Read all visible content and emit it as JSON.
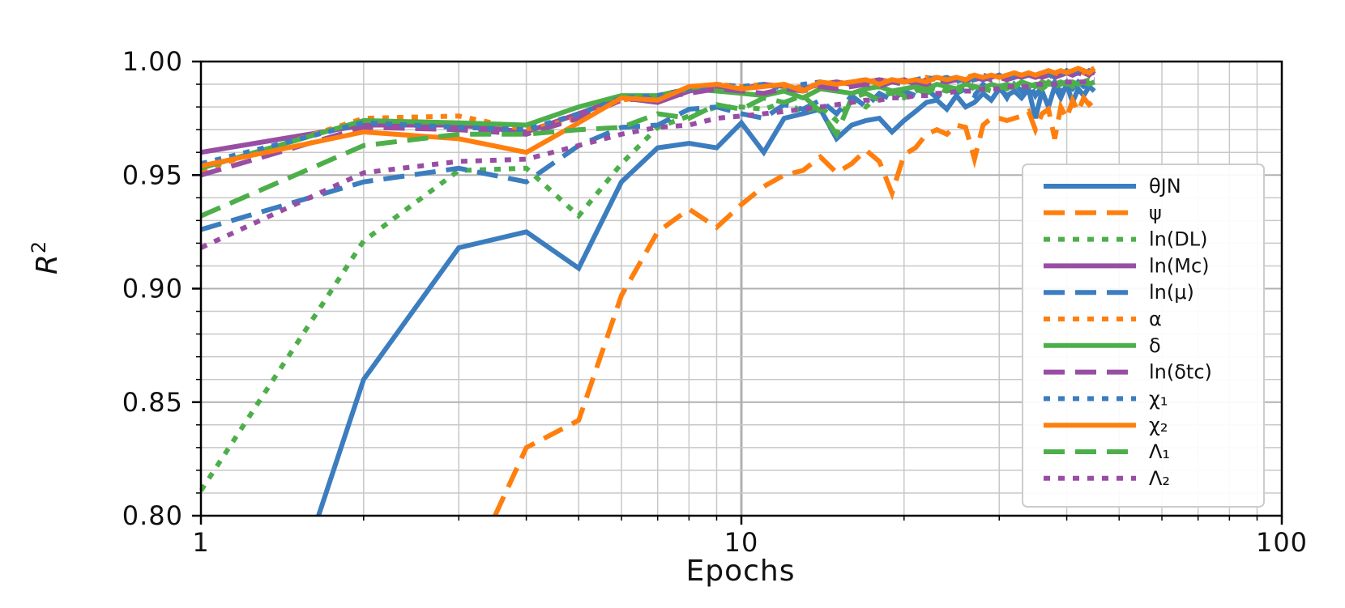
{
  "chart_data": {
    "type": "line",
    "xlabel": "Epochs",
    "ylabel": "R²",
    "xscale": "log",
    "xlim": [
      1,
      100
    ],
    "ylim": [
      0.8,
      1.0
    ],
    "grid": true,
    "legend_position": "center-right",
    "x_tick_labels": [
      "1",
      "10",
      "100"
    ],
    "y_tick_labels": [
      "0.80",
      "0.85",
      "0.90",
      "0.95",
      "1.00"
    ],
    "series": [
      {
        "name": "θ_JN",
        "legend_label": "θJN",
        "color": "#3b7dbf",
        "style": "solid",
        "x": [
          1.65,
          2,
          3,
          4,
          5,
          6,
          7,
          8,
          9,
          10,
          11,
          12,
          13,
          14,
          15,
          16,
          17,
          18,
          19,
          20,
          21,
          22,
          23,
          24,
          25,
          26,
          27,
          28,
          29,
          30,
          31,
          32,
          33,
          34,
          35,
          36,
          37,
          38,
          39,
          40,
          41,
          42,
          43,
          44,
          45
        ],
        "y": [
          0.8,
          0.86,
          0.918,
          0.925,
          0.909,
          0.947,
          0.962,
          0.964,
          0.962,
          0.973,
          0.96,
          0.975,
          0.977,
          0.979,
          0.966,
          0.972,
          0.974,
          0.975,
          0.969,
          0.974,
          0.978,
          0.982,
          0.983,
          0.979,
          0.985,
          0.98,
          0.982,
          0.986,
          0.983,
          0.988,
          0.985,
          0.987,
          0.984,
          0.988,
          0.975,
          0.987,
          0.98,
          0.989,
          0.984,
          0.99,
          0.982,
          0.988,
          0.985,
          0.989,
          0.987
        ]
      },
      {
        "name": "ψ",
        "legend_label": "ψ",
        "color": "#ff7f0e",
        "style": "dashed",
        "x": [
          3.5,
          4,
          5,
          6,
          7,
          8,
          9,
          10,
          11,
          12,
          13,
          14,
          15,
          16,
          17,
          18,
          19,
          20,
          21,
          22,
          23,
          24,
          25,
          26,
          27,
          28,
          29,
          30,
          31,
          32,
          33,
          34,
          35,
          36,
          37,
          38,
          39,
          40,
          41,
          42,
          43,
          44,
          45
        ],
        "y": [
          0.8,
          0.83,
          0.842,
          0.897,
          0.925,
          0.935,
          0.927,
          0.937,
          0.945,
          0.95,
          0.952,
          0.958,
          0.951,
          0.955,
          0.961,
          0.956,
          0.942,
          0.959,
          0.962,
          0.968,
          0.97,
          0.968,
          0.972,
          0.971,
          0.957,
          0.972,
          0.975,
          0.975,
          0.974,
          0.975,
          0.976,
          0.978,
          0.97,
          0.977,
          0.979,
          0.966,
          0.98,
          0.975,
          0.983,
          0.978,
          0.984,
          0.981,
          0.983
        ]
      },
      {
        "name": "ln(D_L)",
        "legend_label": "ln(DL)",
        "color": "#4daf4a",
        "style": "dotted",
        "x": [
          1,
          2,
          3,
          4,
          5,
          6,
          7,
          8,
          9,
          10,
          11,
          12,
          13,
          14,
          15,
          16,
          17,
          18,
          19,
          20,
          21,
          22,
          23,
          24,
          25,
          26,
          27,
          28,
          29,
          30,
          31,
          32,
          33,
          34,
          35,
          36,
          37,
          38,
          39,
          40,
          41,
          42,
          43,
          44,
          45
        ],
        "y": [
          0.811,
          0.921,
          0.952,
          0.953,
          0.932,
          0.955,
          0.971,
          0.976,
          0.98,
          0.98,
          0.979,
          0.982,
          0.978,
          0.98,
          0.974,
          0.983,
          0.98,
          0.985,
          0.986,
          0.984,
          0.987,
          0.989,
          0.988,
          0.987,
          0.989,
          0.987,
          0.99,
          0.988,
          0.987,
          0.989,
          0.99,
          0.988,
          0.989,
          0.991,
          0.99,
          0.988,
          0.991,
          0.989,
          0.99,
          0.991,
          0.99,
          0.989,
          0.991,
          0.992,
          0.991
        ]
      },
      {
        "name": "ln(M_c)",
        "legend_label": "ln(Mc)",
        "color": "#984ea3",
        "style": "solid",
        "x": [
          1,
          2,
          3,
          4,
          5,
          6,
          7,
          8,
          9,
          10,
          11,
          12,
          13,
          14,
          15,
          16,
          17,
          18,
          19,
          20,
          21,
          22,
          23,
          24,
          25,
          26,
          27,
          28,
          29,
          30,
          31,
          32,
          33,
          34,
          35,
          36,
          37,
          38,
          39,
          40,
          41,
          42,
          43,
          44,
          45
        ],
        "y": [
          0.96,
          0.972,
          0.972,
          0.969,
          0.977,
          0.984,
          0.982,
          0.987,
          0.989,
          0.988,
          0.99,
          0.989,
          0.988,
          0.99,
          0.991,
          0.99,
          0.991,
          0.992,
          0.991,
          0.992,
          0.99,
          0.992,
          0.993,
          0.992,
          0.993,
          0.991,
          0.993,
          0.992,
          0.993,
          0.994,
          0.992,
          0.994,
          0.993,
          0.994,
          0.993,
          0.994,
          0.995,
          0.993,
          0.994,
          0.995,
          0.994,
          0.996,
          0.995,
          0.994,
          0.996
        ]
      },
      {
        "name": "ln(μ)",
        "legend_label": "ln(μ)",
        "color": "#3b7dbf",
        "style": "dashed",
        "x": [
          1,
          2,
          3,
          4,
          5,
          6,
          7,
          8,
          9,
          10,
          11,
          12,
          13,
          14,
          15,
          16,
          17,
          18,
          19,
          20,
          21,
          22,
          23,
          24,
          25,
          26,
          27,
          28,
          29,
          30,
          31,
          32,
          33,
          34,
          35,
          36,
          37,
          38,
          39,
          40,
          41,
          42,
          43,
          44,
          45
        ],
        "y": [
          0.926,
          0.947,
          0.953,
          0.947,
          0.963,
          0.971,
          0.972,
          0.979,
          0.98,
          0.977,
          0.975,
          0.981,
          0.979,
          0.983,
          0.977,
          0.985,
          0.98,
          0.986,
          0.983,
          0.987,
          0.985,
          0.988,
          0.984,
          0.989,
          0.986,
          0.988,
          0.985,
          0.99,
          0.987,
          0.989,
          0.984,
          0.99,
          0.987,
          0.991,
          0.985,
          0.989,
          0.988,
          0.991,
          0.986,
          0.99,
          0.988,
          0.991,
          0.989,
          0.99,
          0.992
        ]
      },
      {
        "name": "α",
        "legend_label": "α",
        "color": "#ff7f0e",
        "style": "dotted",
        "x": [
          1,
          2,
          3,
          4,
          5,
          6,
          7,
          8,
          9,
          10,
          11,
          12,
          13,
          14,
          15,
          16,
          17,
          18,
          19,
          20,
          21,
          22,
          23,
          24,
          25,
          26,
          27,
          28,
          29,
          30,
          31,
          32,
          33,
          34,
          35,
          36,
          37,
          38,
          39,
          40,
          41,
          42,
          43,
          44,
          45
        ],
        "y": [
          0.952,
          0.975,
          0.976,
          0.97,
          0.975,
          0.983,
          0.985,
          0.988,
          0.99,
          0.989,
          0.99,
          0.988,
          0.989,
          0.99,
          0.991,
          0.99,
          0.991,
          0.992,
          0.991,
          0.992,
          0.991,
          0.993,
          0.992,
          0.993,
          0.992,
          0.993,
          0.994,
          0.993,
          0.994,
          0.993,
          0.994,
          0.995,
          0.994,
          0.995,
          0.994,
          0.995,
          0.996,
          0.995,
          0.994,
          0.996,
          0.995,
          0.996,
          0.995,
          0.996,
          0.997
        ]
      },
      {
        "name": "δ",
        "legend_label": "δ",
        "color": "#4daf4a",
        "style": "solid",
        "x": [
          1,
          2,
          3,
          4,
          5,
          6,
          7,
          8,
          9,
          10,
          11,
          12,
          13,
          14,
          15,
          16,
          17,
          18,
          19,
          20,
          21,
          22,
          23,
          24,
          25,
          26,
          27,
          28,
          29,
          30,
          31,
          32,
          33,
          34,
          35,
          36,
          37,
          38,
          39,
          40,
          41,
          42,
          43,
          44,
          45
        ],
        "y": [
          0.953,
          0.974,
          0.973,
          0.972,
          0.98,
          0.985,
          0.985,
          0.988,
          0.987,
          0.986,
          0.985,
          0.987,
          0.984,
          0.988,
          0.987,
          0.986,
          0.988,
          0.989,
          0.987,
          0.988,
          0.989,
          0.988,
          0.99,
          0.989,
          0.988,
          0.99,
          0.989,
          0.988,
          0.99,
          0.989,
          0.99,
          0.989,
          0.991,
          0.99,
          0.989,
          0.991,
          0.99,
          0.99,
          0.991,
          0.99,
          0.991,
          0.99,
          0.991,
          0.99,
          0.991
        ]
      },
      {
        "name": "ln(δt_c)",
        "legend_label": "ln(δtc)",
        "color": "#984ea3",
        "style": "dashed",
        "x": [
          1,
          2,
          3,
          4,
          5,
          6,
          7,
          8,
          9,
          10,
          11,
          12,
          13,
          14,
          15,
          16,
          17,
          18,
          19,
          20,
          21,
          22,
          23,
          24,
          25,
          26,
          27,
          28,
          29,
          30,
          31,
          32,
          33,
          34,
          35,
          36,
          37,
          38,
          39,
          40,
          41,
          42,
          43,
          44,
          45
        ],
        "y": [
          0.95,
          0.971,
          0.97,
          0.968,
          0.975,
          0.983,
          0.984,
          0.986,
          0.988,
          0.987,
          0.986,
          0.988,
          0.987,
          0.989,
          0.988,
          0.989,
          0.99,
          0.989,
          0.991,
          0.99,
          0.991,
          0.99,
          0.992,
          0.991,
          0.992,
          0.991,
          0.992,
          0.993,
          0.992,
          0.993,
          0.992,
          0.993,
          0.994,
          0.993,
          0.994,
          0.993,
          0.994,
          0.995,
          0.994,
          0.995,
          0.994,
          0.995,
          0.994,
          0.995,
          0.995
        ]
      },
      {
        "name": "χ₁",
        "legend_label": "χ₁",
        "color": "#3b7dbf",
        "style": "dotted",
        "x": [
          1,
          2,
          3,
          4,
          5,
          6,
          7,
          8,
          9,
          10,
          11,
          12,
          13,
          14,
          15,
          16,
          17,
          18,
          19,
          20,
          21,
          22,
          23,
          24,
          25,
          26,
          27,
          28,
          29,
          30,
          31,
          32,
          33,
          34,
          35,
          36,
          37,
          38,
          39,
          40,
          41,
          42,
          43,
          44,
          45
        ],
        "y": [
          0.955,
          0.973,
          0.971,
          0.97,
          0.977,
          0.984,
          0.985,
          0.988,
          0.99,
          0.989,
          0.99,
          0.988,
          0.99,
          0.991,
          0.99,
          0.991,
          0.992,
          0.99,
          0.992,
          0.991,
          0.992,
          0.993,
          0.992,
          0.993,
          0.991,
          0.993,
          0.992,
          0.994,
          0.993,
          0.994,
          0.992,
          0.994,
          0.993,
          0.995,
          0.994,
          0.995,
          0.993,
          0.995,
          0.994,
          0.996,
          0.995,
          0.996,
          0.994,
          0.996,
          0.995
        ]
      },
      {
        "name": "χ₂",
        "legend_label": "χ₂",
        "color": "#ff7f0e",
        "style": "solid",
        "x": [
          1,
          2,
          3,
          4,
          5,
          6,
          7,
          8,
          9,
          10,
          11,
          12,
          13,
          14,
          15,
          16,
          17,
          18,
          19,
          20,
          21,
          22,
          23,
          24,
          25,
          26,
          27,
          28,
          29,
          30,
          31,
          32,
          33,
          34,
          35,
          36,
          37,
          38,
          39,
          40,
          41,
          42,
          43,
          44,
          45
        ],
        "y": [
          0.954,
          0.969,
          0.966,
          0.96,
          0.973,
          0.984,
          0.983,
          0.989,
          0.99,
          0.988,
          0.989,
          0.99,
          0.987,
          0.991,
          0.99,
          0.991,
          0.992,
          0.99,
          0.992,
          0.991,
          0.992,
          0.991,
          0.993,
          0.992,
          0.993,
          0.992,
          0.994,
          0.993,
          0.994,
          0.993,
          0.994,
          0.995,
          0.994,
          0.995,
          0.994,
          0.995,
          0.996,
          0.995,
          0.996,
          0.995,
          0.996,
          0.997,
          0.996,
          0.995,
          0.997
        ]
      },
      {
        "name": "Λ₁",
        "legend_label": "Λ₁",
        "color": "#4daf4a",
        "style": "dashed",
        "x": [
          1,
          2,
          3,
          4,
          5,
          6,
          7,
          8,
          9,
          10,
          11,
          12,
          13,
          14,
          15,
          16,
          17,
          18,
          19,
          20,
          21,
          22,
          23,
          24,
          25,
          26,
          27,
          28,
          29,
          30,
          31,
          32,
          33,
          34,
          35,
          36,
          37,
          38,
          39,
          40,
          41,
          42,
          43,
          44,
          45
        ],
        "y": [
          0.932,
          0.963,
          0.968,
          0.968,
          0.97,
          0.971,
          0.977,
          0.975,
          0.981,
          0.979,
          0.984,
          0.982,
          0.985,
          0.978,
          0.968,
          0.984,
          0.986,
          0.983,
          0.987,
          0.985,
          0.988,
          0.986,
          0.989,
          0.987,
          0.988,
          0.986,
          0.989,
          0.988,
          0.987,
          0.989,
          0.988,
          0.99,
          0.988,
          0.989,
          0.99,
          0.988,
          0.99,
          0.989,
          0.99,
          0.991,
          0.989,
          0.99,
          0.991,
          0.99,
          0.991
        ]
      },
      {
        "name": "Λ₂",
        "legend_label": "Λ₂",
        "color": "#984ea3",
        "style": "dotted",
        "x": [
          1,
          2,
          3,
          4,
          5,
          6,
          7,
          8,
          9,
          10,
          11,
          12,
          13,
          14,
          15,
          16,
          17,
          18,
          19,
          20,
          21,
          22,
          23,
          24,
          25,
          26,
          27,
          28,
          29,
          30,
          31,
          32,
          33,
          34,
          35,
          36,
          37,
          38,
          39,
          40,
          41,
          42,
          43,
          44,
          45
        ],
        "y": [
          0.918,
          0.951,
          0.956,
          0.957,
          0.963,
          0.968,
          0.971,
          0.972,
          0.975,
          0.976,
          0.977,
          0.978,
          0.979,
          0.98,
          0.981,
          0.982,
          0.983,
          0.983,
          0.984,
          0.984,
          0.985,
          0.985,
          0.986,
          0.986,
          0.987,
          0.987,
          0.987,
          0.988,
          0.988,
          0.988,
          0.989,
          0.989,
          0.989,
          0.989,
          0.99,
          0.99,
          0.99,
          0.99,
          0.991,
          0.991,
          0.991,
          0.991,
          0.991,
          0.992,
          0.992
        ]
      }
    ]
  }
}
